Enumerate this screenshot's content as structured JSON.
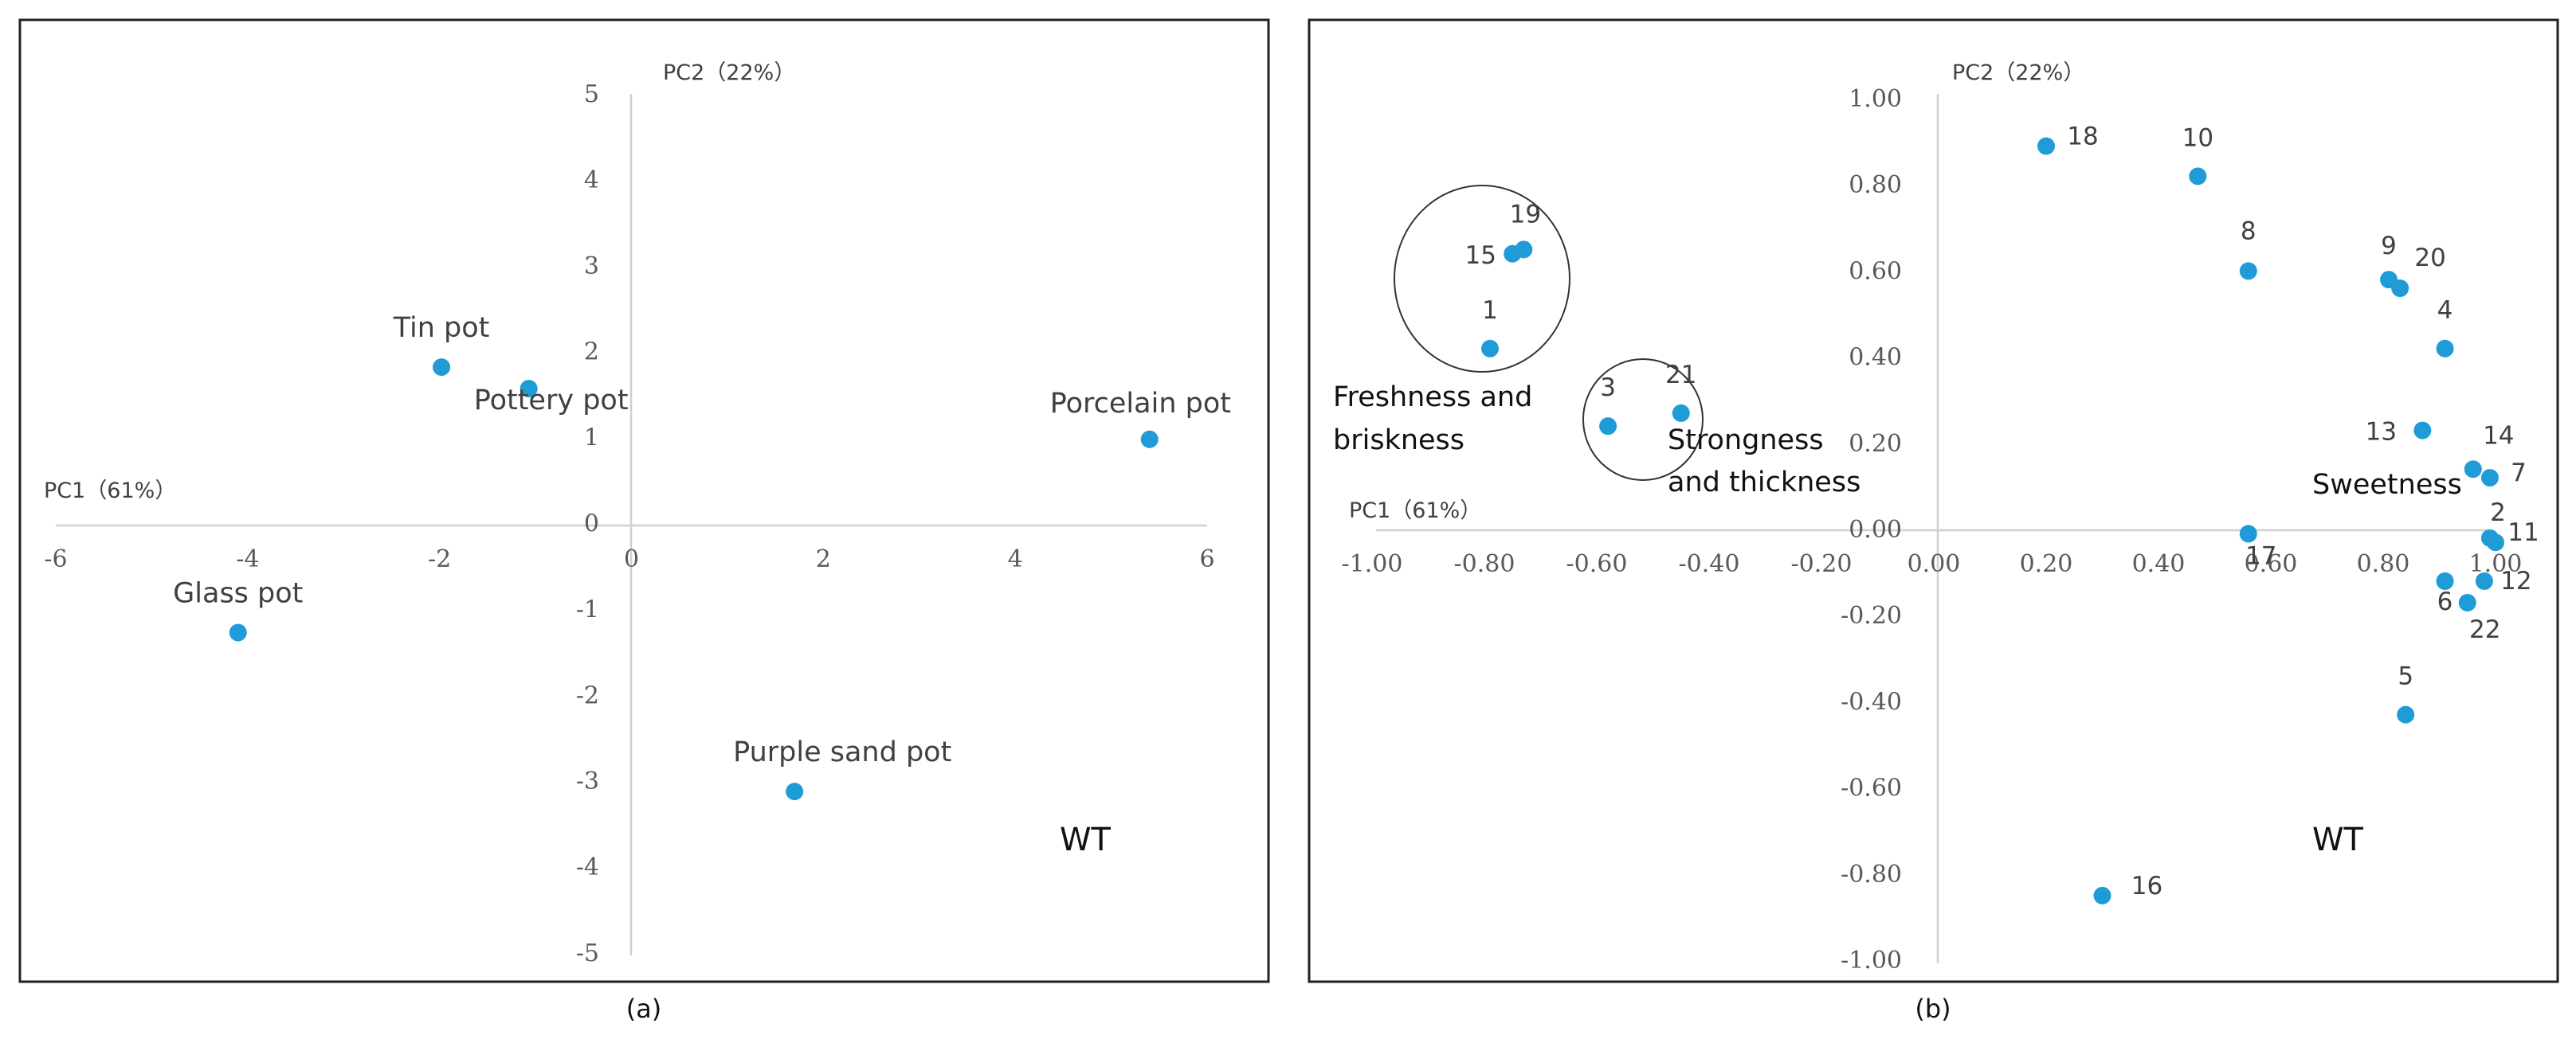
{
  "chart_data": [
    {
      "type": "scatter",
      "caption": "(a)",
      "xlabel": "PC1（61%）",
      "ylabel": "PC2（22%）",
      "xlim": [
        -6,
        6
      ],
      "ylim": [
        -5,
        5
      ],
      "xticks": [
        "-6",
        "-4",
        "-2",
        "0",
        "2",
        "4",
        "6"
      ],
      "yticks": [
        "5",
        "4",
        "3",
        "2",
        "1",
        "0",
        "-1",
        "-2",
        "-3",
        "-4",
        "-5"
      ],
      "annotation": "WT",
      "point_color": "#1f9bd7",
      "points": [
        {
          "label": "Tin pot",
          "x": -1.98,
          "y": 1.82
        },
        {
          "label": "Pottery pot",
          "x": -1.07,
          "y": 1.57
        },
        {
          "label": "Porcelain pot",
          "x": 5.4,
          "y": 0.98
        },
        {
          "label": "Glass pot",
          "x": -4.1,
          "y": -1.27
        },
        {
          "label": "Purple sand pot",
          "x": 1.7,
          "y": -3.12
        }
      ]
    },
    {
      "type": "scatter",
      "caption": "(b)",
      "xlabel": "PC1（61%）",
      "ylabel": "PC2（22%）",
      "xlim": [
        -1.0,
        1.0
      ],
      "ylim": [
        -1.0,
        1.0
      ],
      "xticks": [
        "-1.00",
        "-0.80",
        "-0.60",
        "-0.40",
        "-0.20",
        "0.00",
        "0.20",
        "0.40",
        "0.60",
        "0.80",
        "1.00"
      ],
      "yticks": [
        "1.00",
        "0.80",
        "0.60",
        "0.40",
        "0.20",
        "0.00",
        "-0.20",
        "-0.40",
        "-0.60",
        "-0.80",
        "-1.00"
      ],
      "annotation": "WT",
      "point_color": "#1f9bd7",
      "groups": [
        {
          "label_lines": [
            "Freshness and",
            "briskness"
          ]
        },
        {
          "label_lines": [
            "Strongness",
            "and thickness"
          ]
        },
        {
          "label_lines": [
            "Sweetness"
          ]
        }
      ],
      "points": [
        {
          "label": "1",
          "x": -0.79,
          "y": 0.42
        },
        {
          "label": "2",
          "x": 0.99,
          "y": -0.02
        },
        {
          "label": "3",
          "x": -0.58,
          "y": 0.24
        },
        {
          "label": "4",
          "x": 0.91,
          "y": 0.42
        },
        {
          "label": "5",
          "x": 0.84,
          "y": -0.43
        },
        {
          "label": "6",
          "x": 0.91,
          "y": -0.12
        },
        {
          "label": "7",
          "x": 0.99,
          "y": 0.12
        },
        {
          "label": "8",
          "x": 0.56,
          "y": 0.6
        },
        {
          "label": "9",
          "x": 0.81,
          "y": 0.58
        },
        {
          "label": "10",
          "x": 0.47,
          "y": 0.82
        },
        {
          "label": "11",
          "x": 1.0,
          "y": -0.03
        },
        {
          "label": "12",
          "x": 0.98,
          "y": -0.12
        },
        {
          "label": "13",
          "x": 0.87,
          "y": 0.23
        },
        {
          "label": "14",
          "x": 0.96,
          "y": 0.14
        },
        {
          "label": "15",
          "x": -0.75,
          "y": 0.64
        },
        {
          "label": "16",
          "x": 0.3,
          "y": -0.85
        },
        {
          "label": "17",
          "x": 0.56,
          "y": -0.01
        },
        {
          "label": "18",
          "x": 0.2,
          "y": 0.89
        },
        {
          "label": "19",
          "x": -0.73,
          "y": 0.65
        },
        {
          "label": "20",
          "x": 0.83,
          "y": 0.56
        },
        {
          "label": "21",
          "x": -0.45,
          "y": 0.27
        },
        {
          "label": "22",
          "x": 0.95,
          "y": -0.17
        }
      ]
    }
  ]
}
